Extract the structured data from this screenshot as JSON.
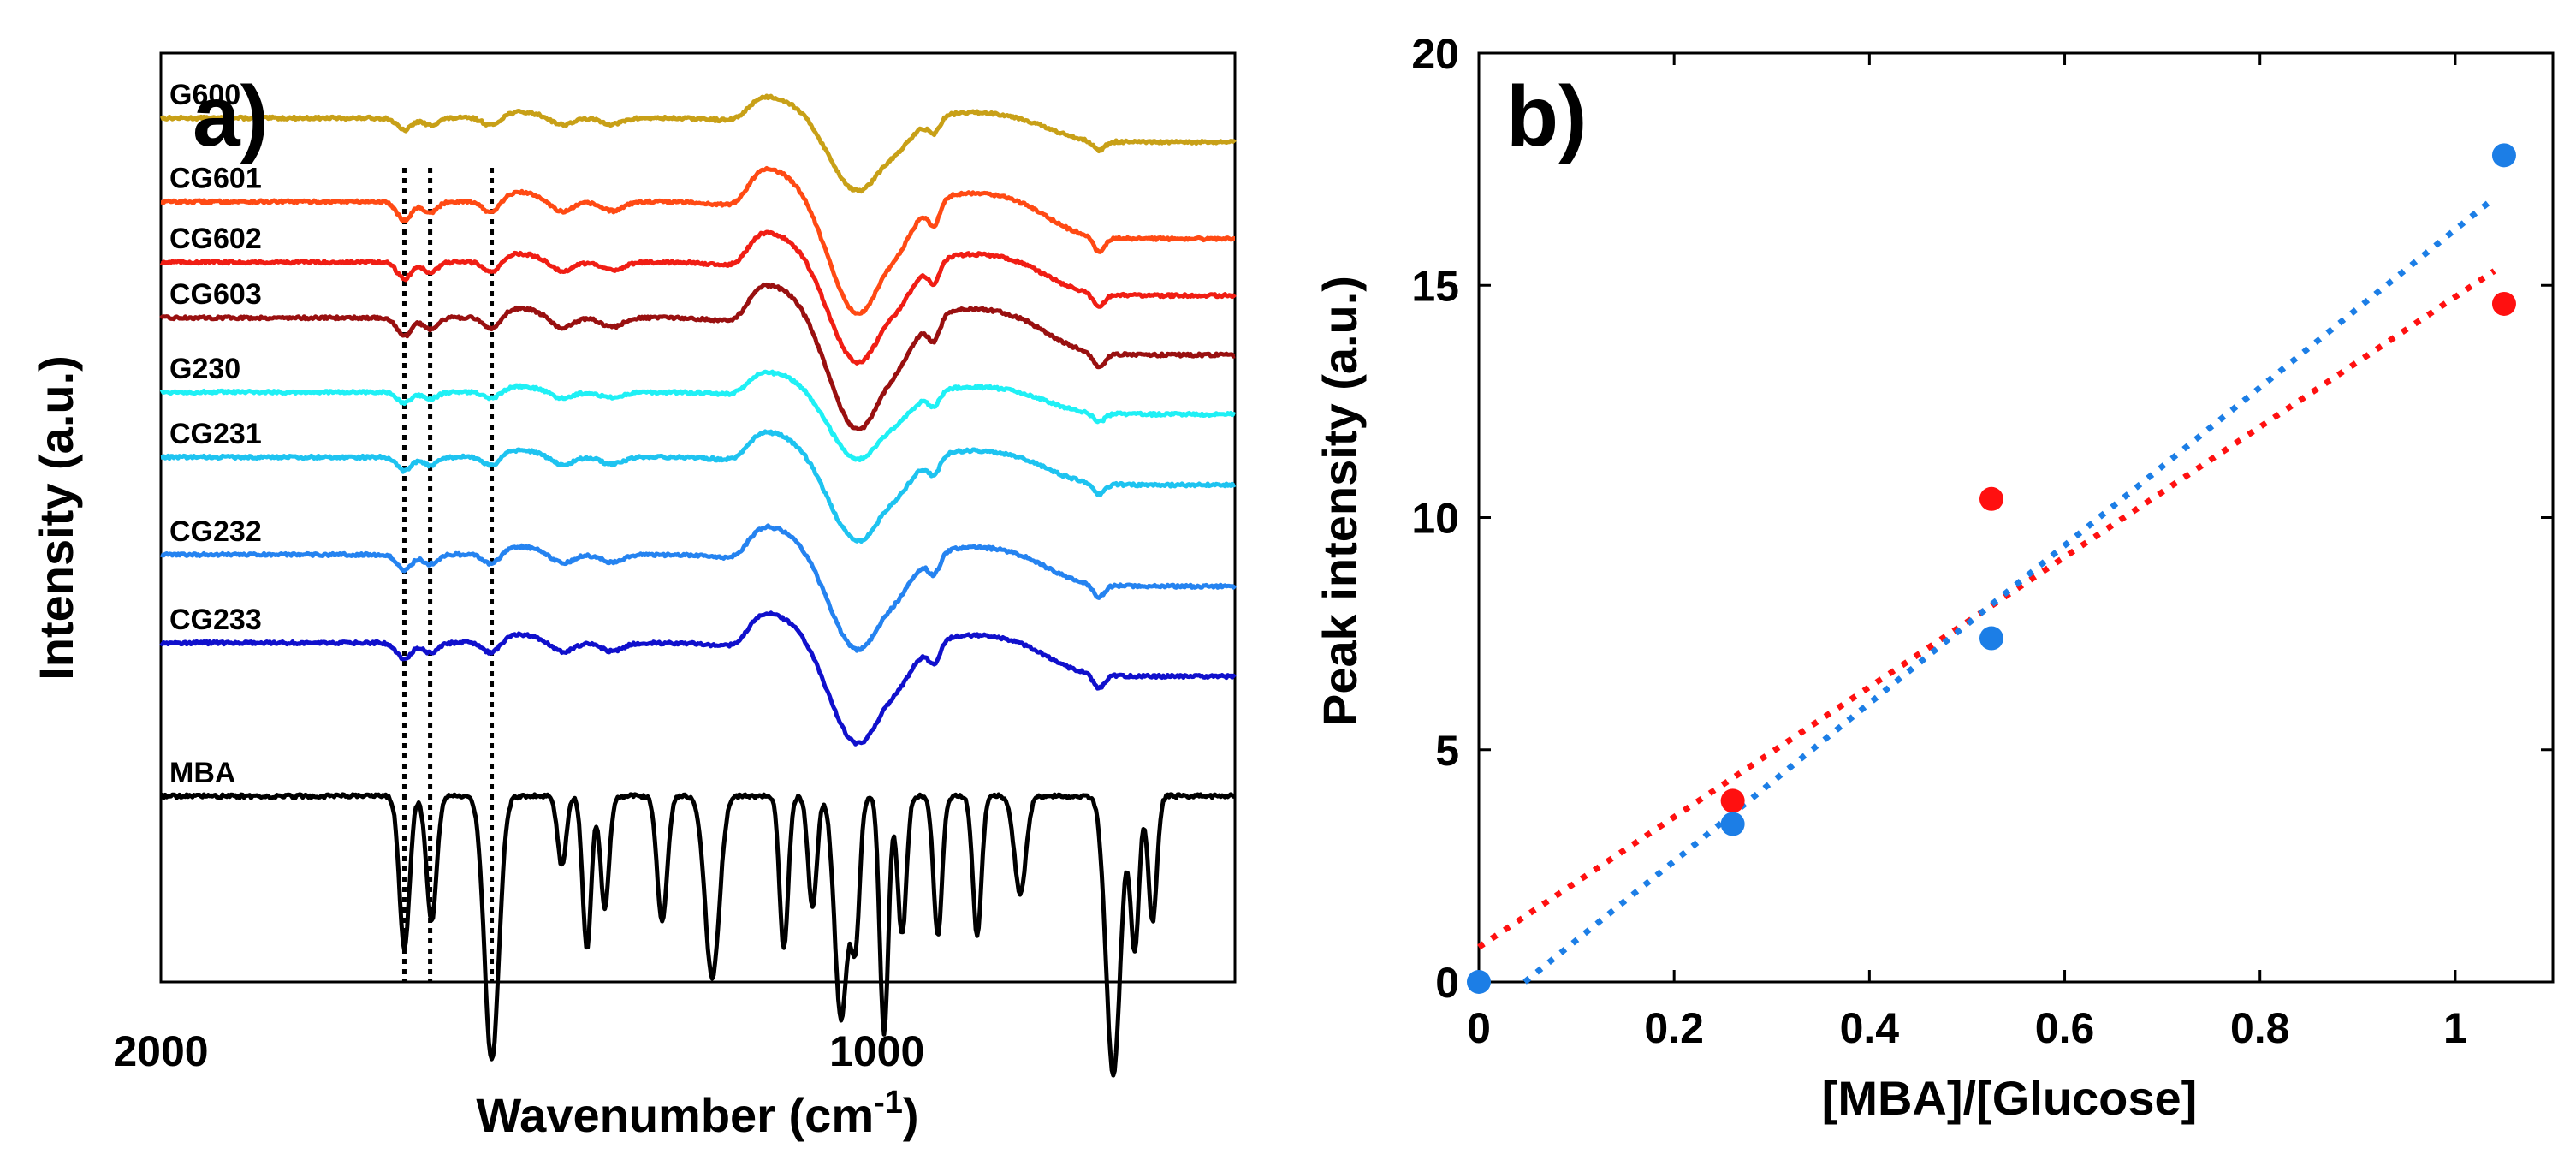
{
  "chart_data": [
    {
      "panel": "a)",
      "type": "line",
      "xlabel": "Wavenumber (cm",
      "xlabel_superscript": "-1",
      "xlabel_suffix": ")",
      "ylabel": "Intensity (a.u.)",
      "xlim": [
        2000,
        500
      ],
      "x_ticks": [
        2000,
        1000
      ],
      "x_tick_labels": [
        "2000",
        "1000"
      ],
      "marker_lines_x": [
        1660,
        1624,
        1538
      ],
      "series": [
        {
          "name": "G600",
          "color": "#C8A017",
          "offset": 0.93,
          "scale": 0.13,
          "noise": 0.003
        },
        {
          "name": "CG601",
          "color": "#FF4A14",
          "offset": 0.84,
          "scale": 0.2,
          "noise": 0.003
        },
        {
          "name": "CG602",
          "color": "#F01E14",
          "offset": 0.775,
          "scale": 0.18,
          "noise": 0.003
        },
        {
          "name": "CG603",
          "color": "#991010",
          "offset": 0.715,
          "scale": 0.2,
          "noise": 0.003
        },
        {
          "name": "G230",
          "color": "#1FF0F5",
          "offset": 0.635,
          "scale": 0.12,
          "noise": 0.003
        },
        {
          "name": "CG231",
          "color": "#1EC3F0",
          "offset": 0.565,
          "scale": 0.15,
          "noise": 0.003
        },
        {
          "name": "CG232",
          "color": "#2583F0",
          "offset": 0.46,
          "scale": 0.17,
          "noise": 0.003
        },
        {
          "name": "CG233",
          "color": "#1010CC",
          "offset": 0.365,
          "scale": 0.18,
          "noise": 0.003
        },
        {
          "name": "MBA",
          "color": "#000000",
          "offset": 0.2,
          "scale": 0.3,
          "noise": 0.004,
          "sharp": true
        }
      ]
    },
    {
      "panel": "b)",
      "type": "scatter",
      "xlabel": "[MBA]/[Glucose]",
      "ylabel": "Peak intensity (a.u.)",
      "xlim": [
        0,
        1.1
      ],
      "ylim": [
        0,
        20
      ],
      "x_ticks": [
        0,
        0.2,
        0.4,
        0.6,
        0.8,
        1.0
      ],
      "x_tick_labels": [
        "0",
        "0.2",
        "0.4",
        "0.6",
        "0.8",
        "1"
      ],
      "y_ticks": [
        0,
        5,
        10,
        15,
        20
      ],
      "y_tick_labels": [
        "0",
        "5",
        "10",
        "15",
        "20"
      ],
      "series": [
        {
          "name": "red",
          "color": "#FF1010",
          "x": [
            0.26,
            0.525,
            1.05
          ],
          "y": [
            3.9,
            10.4,
            14.6
          ],
          "fit": {
            "slope": 14.0,
            "intercept": 0.75,
            "x_range": [
              0,
              1.04
            ]
          }
        },
        {
          "name": "blue",
          "color": "#1C7EE6",
          "x": [
            0.0,
            0.26,
            0.525,
            1.05
          ],
          "y": [
            0.0,
            3.4,
            7.4,
            17.8
          ],
          "fit": {
            "slope": 17.0,
            "intercept": -0.8,
            "x_range": [
              0.047,
              1.04
            ]
          }
        }
      ]
    }
  ]
}
